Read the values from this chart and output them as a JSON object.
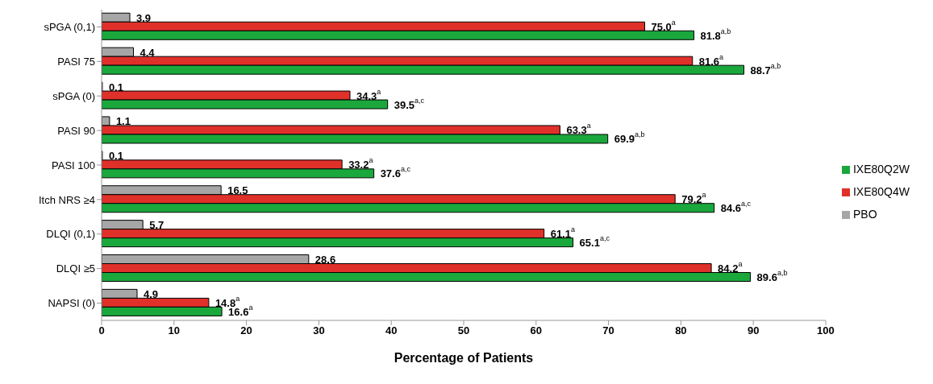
{
  "chart_data": {
    "type": "bar",
    "orientation": "horizontal",
    "xlabel": "Percentage of Patients",
    "categories": [
      "sPGA (0,1)",
      "PASI 75",
      "sPGA (0)",
      "PASI 90",
      "PASI 100",
      "Itch NRS ≥4",
      "DLQI (0,1)",
      "DLQI ≥5",
      "NAPSI (0)"
    ],
    "series": [
      {
        "name": "PBO",
        "color": "#a6a6a6",
        "values": [
          3.9,
          4.4,
          0.1,
          1.1,
          0.1,
          16.5,
          5.7,
          28.6,
          4.9
        ],
        "value_labels": [
          "3.9",
          "4.4",
          "0.1",
          "1.1",
          "0.1",
          "16.5",
          "5.7",
          "28.6",
          "4.9"
        ]
      },
      {
        "name": "IXE80Q4W",
        "color": "#e0302a",
        "values": [
          75.0,
          81.6,
          34.3,
          63.3,
          33.2,
          79.2,
          61.1,
          84.2,
          14.8
        ],
        "value_labels": [
          "75.0$^{a}$",
          "81.6$^{a}$",
          "34.3$^{a}$",
          "63.3$^{a}$",
          "33.2$^{a}$",
          "79.2$^{a}$",
          "61.1$^{a}$",
          "84.2$^{a}$",
          "14.8$^{a}$"
        ]
      },
      {
        "name": "IXE80Q2W",
        "color": "#1aa83c",
        "values": [
          81.8,
          88.7,
          39.5,
          69.9,
          37.6,
          84.6,
          65.1,
          89.6,
          16.6
        ],
        "value_labels": [
          "81.8$^{a,b}$",
          "88.7$^{a,b}$",
          "39.5$^{a,c}$",
          "69.9$^{a,b}$",
          "37.6$^{a,c}$",
          "84.6$^{a,c}$",
          "65.1$^{a,c}$",
          "89.6$^{a,b}$",
          "16.6$^{a}$"
        ]
      }
    ],
    "xlim": [
      0,
      100
    ],
    "xticks": [
      0,
      10,
      20,
      30,
      40,
      50,
      60,
      70,
      80,
      90,
      100
    ],
    "legend": "right"
  }
}
